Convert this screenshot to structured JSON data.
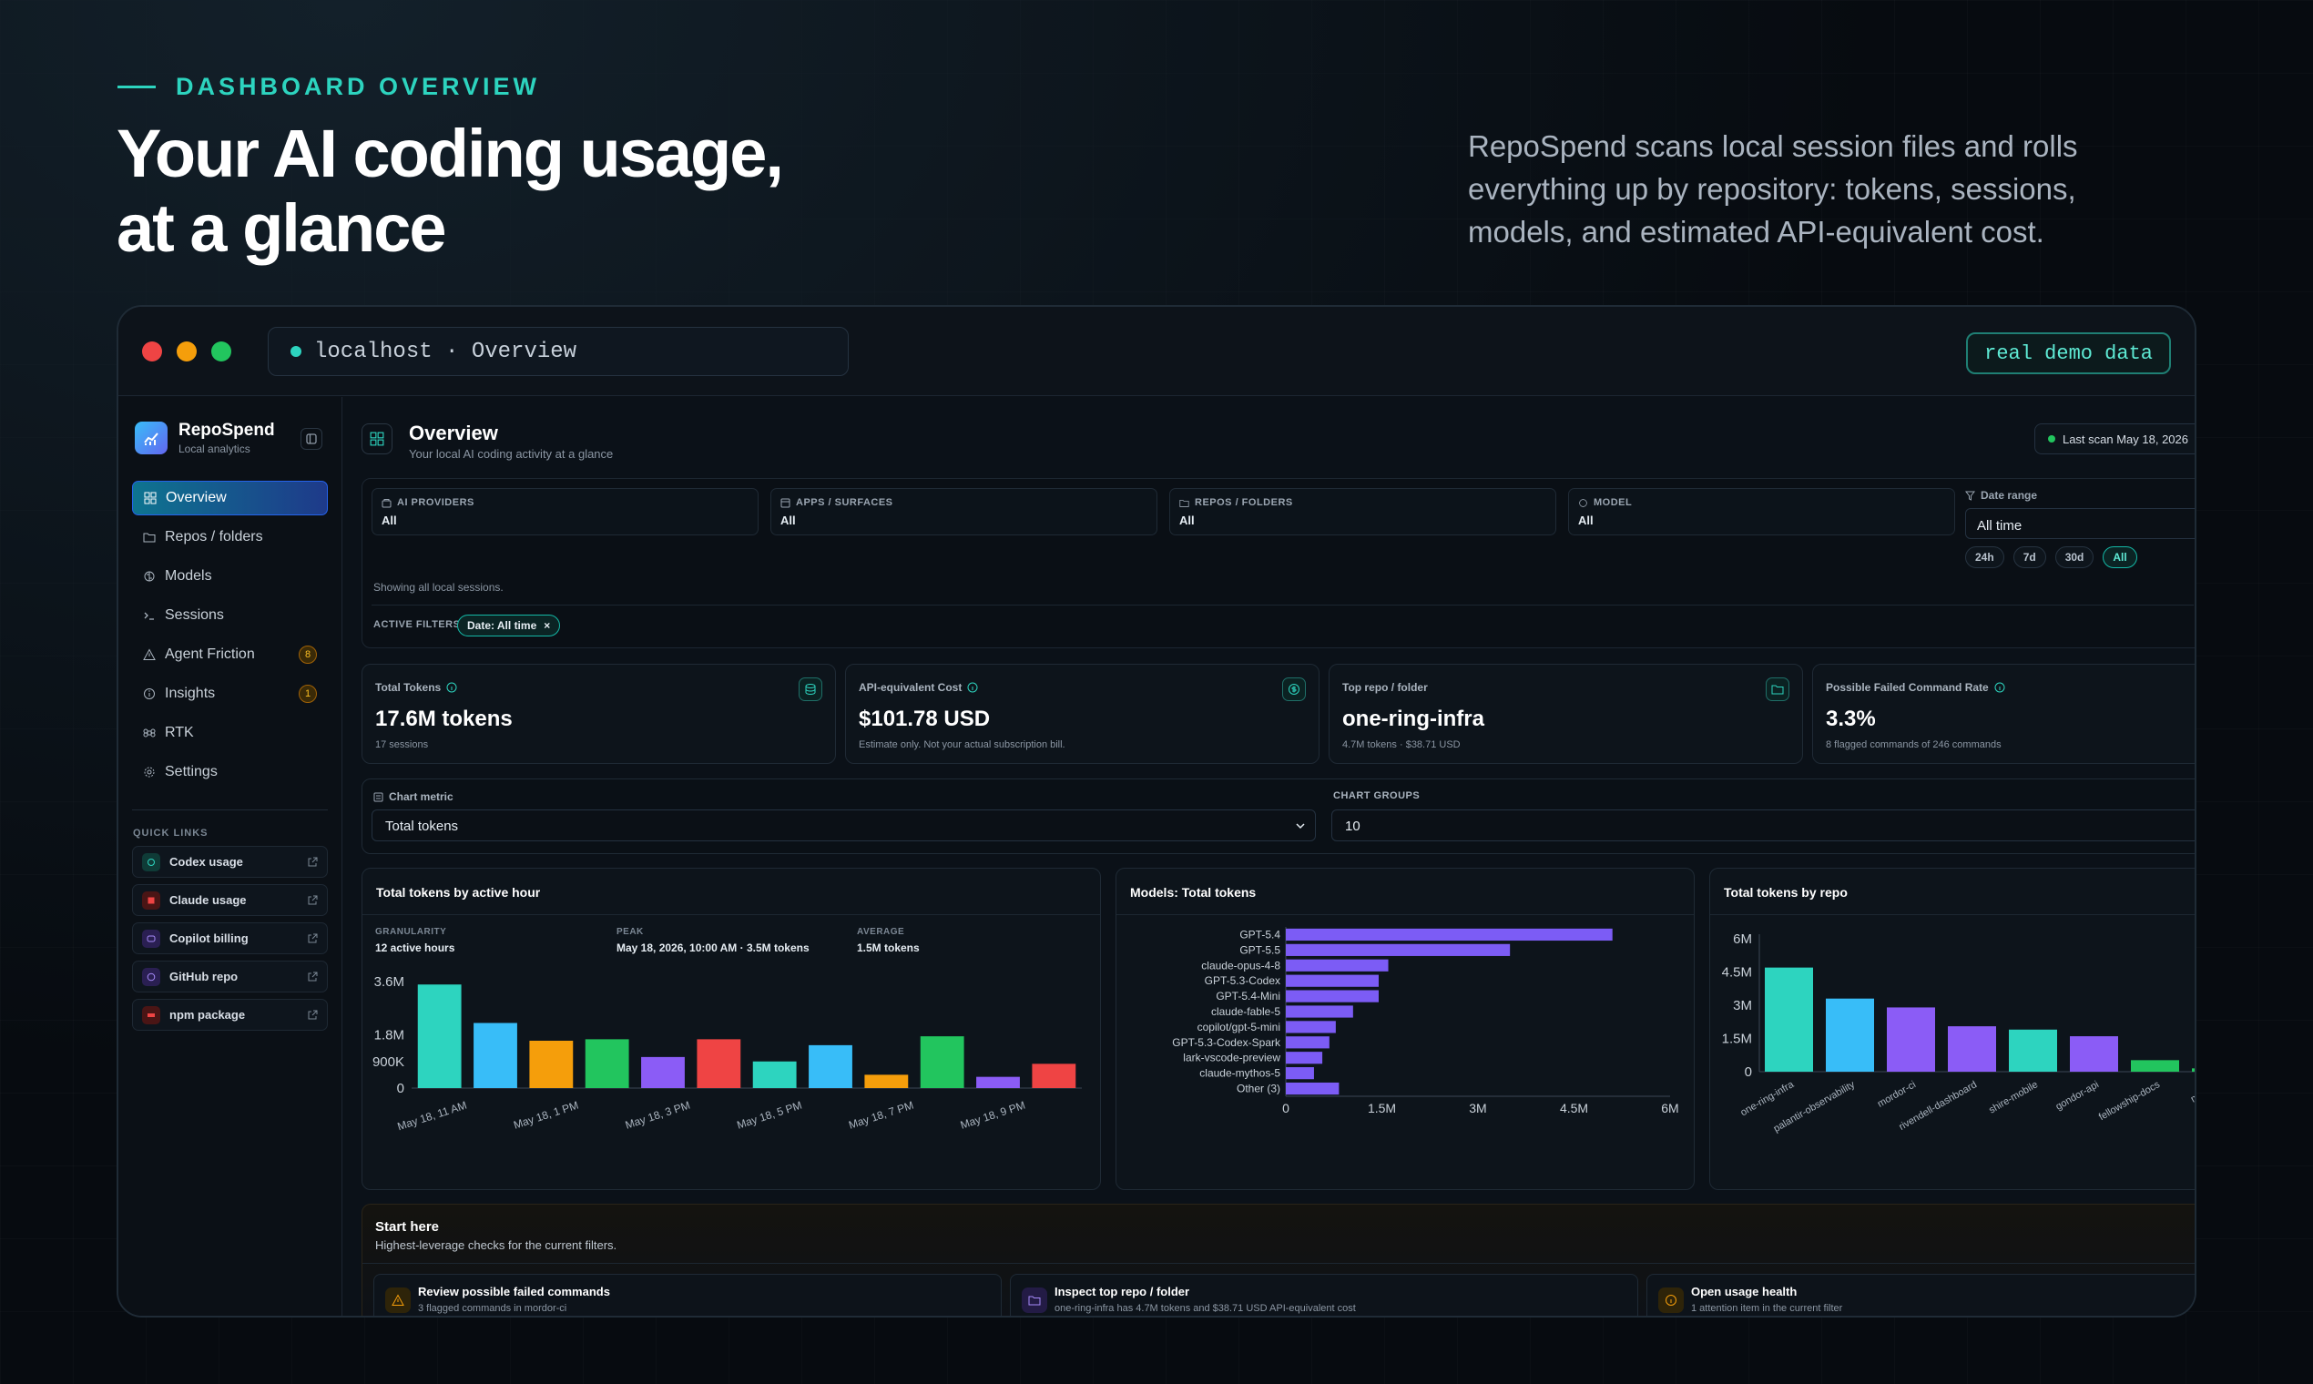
{
  "hero": {
    "eyebrow": "DASHBOARD OVERVIEW",
    "title_line1": "Your AI coding usage,",
    "title_line2": "at a glance",
    "description": "RepoSpend scans local session files and rolls everything up by repository: tokens, sessions, models, and estimated API-equivalent cost."
  },
  "window": {
    "url": "localhost · Overview",
    "demo_badge": "real demo data"
  },
  "sidebar": {
    "brand_name": "RepoSpend",
    "brand_sub": "Local analytics",
    "nav": [
      {
        "label": "Overview",
        "icon": "grid-icon"
      },
      {
        "label": "Repos / folders",
        "icon": "folder-icon"
      },
      {
        "label": "Models",
        "icon": "brain-icon"
      },
      {
        "label": "Sessions",
        "icon": "terminal-icon"
      },
      {
        "label": "Agent Friction",
        "icon": "warning-icon",
        "badge": "8"
      },
      {
        "label": "Insights",
        "icon": "info-icon",
        "badge": "1"
      },
      {
        "label": "RTK",
        "icon": "command-icon"
      },
      {
        "label": "Settings",
        "icon": "gear-icon"
      }
    ],
    "quick_links_title": "QUICK LINKS",
    "quick_links": [
      {
        "label": "Codex usage",
        "color": "#14b8a6"
      },
      {
        "label": "Claude usage",
        "color": "#ef4444"
      },
      {
        "label": "Copilot billing",
        "color": "#8b5cf6"
      },
      {
        "label": "GitHub repo",
        "color": "#8b5cf6"
      },
      {
        "label": "npm package",
        "color": "#ef4444"
      }
    ]
  },
  "header": {
    "title": "Overview",
    "subtitle": "Your local AI coding activity at a glance",
    "last_scan": "Last scan May 18, 2026"
  },
  "filters": {
    "boxes": [
      {
        "label": "AI PROVIDERS",
        "value": "All"
      },
      {
        "label": "APPS / SURFACES",
        "value": "All"
      },
      {
        "label": "REPOS / FOLDERS",
        "value": "All"
      },
      {
        "label": "MODEL",
        "value": "All"
      }
    ],
    "date_range_label": "Date range",
    "date_range_value": "All time",
    "chips": [
      "24h",
      "7d",
      "30d",
      "All"
    ],
    "active_chip": "All",
    "showing": "Showing all local sessions.",
    "active_filters_label": "ACTIVE FILTERS",
    "active_filter": "Date: All time",
    "active_filter_close": "×"
  },
  "kpis": [
    {
      "label": "Total Tokens",
      "value": "17.6M tokens",
      "sub": "17 sessions"
    },
    {
      "label": "API-equivalent Cost",
      "value": "$101.78 USD",
      "sub": "Estimate only. Not your actual subscription bill."
    },
    {
      "label": "Top repo / folder",
      "value": "one-ring-infra",
      "sub": "4.7M tokens · $38.71 USD"
    },
    {
      "label": "Possible Failed Command Rate",
      "value": "3.3%",
      "sub": "8 flagged commands of 246 commands"
    }
  ],
  "controls": {
    "metric_label": "Chart metric",
    "metric_value": "Total tokens",
    "groups_label": "CHART GROUPS",
    "groups_value": "10"
  },
  "chart_data": [
    {
      "type": "bar",
      "title": "Total tokens by active hour",
      "meta": [
        {
          "k": "GRANULARITY",
          "v": "12 active hours"
        },
        {
          "k": "PEAK",
          "v": "May 18, 2026, 10:00 AM · 3.5M tokens"
        },
        {
          "k": "AVERAGE",
          "v": "1.5M tokens"
        }
      ],
      "ylim": [
        0,
        3600000
      ],
      "y_ticks": [
        {
          "v": 0,
          "label": "0"
        },
        {
          "v": 900000,
          "label": "900K"
        },
        {
          "v": 1800000,
          "label": "1.8M"
        },
        {
          "v": 3600000,
          "label": "3.6M"
        }
      ],
      "x_tick_labels": [
        "May 18, 11 AM",
        "May 18, 1 PM",
        "May 18, 3 PM",
        "May 18, 5 PM",
        "May 18, 7 PM",
        "May 18, 9 PM"
      ],
      "values": [
        3500000,
        2200000,
        1600000,
        1650000,
        1050000,
        1650000,
        900000,
        1450000,
        450000,
        1750000,
        380000,
        820000
      ],
      "colors": [
        "#2dd4bf",
        "#38bdf8",
        "#f59e0b",
        "#22c55e",
        "#8b5cf6",
        "#ef4444",
        "#2dd4bf",
        "#38bdf8",
        "#f59e0b",
        "#22c55e",
        "#8b5cf6",
        "#ef4444"
      ]
    },
    {
      "type": "bar",
      "orientation": "horizontal",
      "title": "Models: Total tokens",
      "categories": [
        "GPT-5.4",
        "GPT-5.5",
        "claude-opus-4-8",
        "GPT-5.3-Codex",
        "GPT-5.4-Mini",
        "claude-fable-5",
        "copilot/gpt-5-mini",
        "GPT-5.3-Codex-Spark",
        "lark-vscode-preview",
        "claude-mythos-5",
        "Other (3)"
      ],
      "values": [
        5100000,
        3500000,
        1600000,
        1450000,
        1450000,
        1050000,
        780000,
        680000,
        570000,
        440000,
        830000
      ],
      "xlim": [
        0,
        6000000
      ],
      "x_ticks": [
        {
          "v": 0,
          "label": "0"
        },
        {
          "v": 1500000,
          "label": "1.5M"
        },
        {
          "v": 3000000,
          "label": "3M"
        },
        {
          "v": 4500000,
          "label": "4.5M"
        },
        {
          "v": 6000000,
          "label": "6M"
        }
      ],
      "color": "#7c5cf5"
    },
    {
      "type": "bar",
      "title": "Total tokens by repo",
      "categories": [
        "one-ring-infra",
        "palantir-observability",
        "mordor-ci",
        "rivendell-dashboard",
        "shire-mobile",
        "gondor-api",
        "fellowship-docs",
        "minas-t"
      ],
      "values": [
        4700000,
        3300000,
        2900000,
        2050000,
        1900000,
        1600000,
        520000,
        150000
      ],
      "ylim": [
        0,
        6000000
      ],
      "y_ticks": [
        {
          "v": 0,
          "label": "0"
        },
        {
          "v": 1500000,
          "label": "1.5M"
        },
        {
          "v": 3000000,
          "label": "3M"
        },
        {
          "v": 4500000,
          "label": "4.5M"
        },
        {
          "v": 6000000,
          "label": "6M"
        }
      ],
      "colors": [
        "#2dd4bf",
        "#38bdf8",
        "#8b5cf6",
        "#8b5cf6",
        "#2dd4bf",
        "#8b5cf6",
        "#22c55e",
        "#22c55e"
      ]
    }
  ],
  "start_here": {
    "title": "Start here",
    "subtitle": "Highest-leverage checks for the current filters.",
    "cards": [
      {
        "title": "Review possible failed commands",
        "sub": "3 flagged commands in mordor-ci",
        "icon": "warning-icon",
        "color": "#f59e0b"
      },
      {
        "title": "Inspect top repo / folder",
        "sub": "one-ring-infra has 4.7M tokens and $38.71 USD API-equivalent cost",
        "icon": "folder-icon",
        "color": "#8b5cf6"
      },
      {
        "title": "Open usage health",
        "sub": "1 attention item in the current filter",
        "icon": "info-icon",
        "color": "#f59e0b"
      }
    ]
  }
}
